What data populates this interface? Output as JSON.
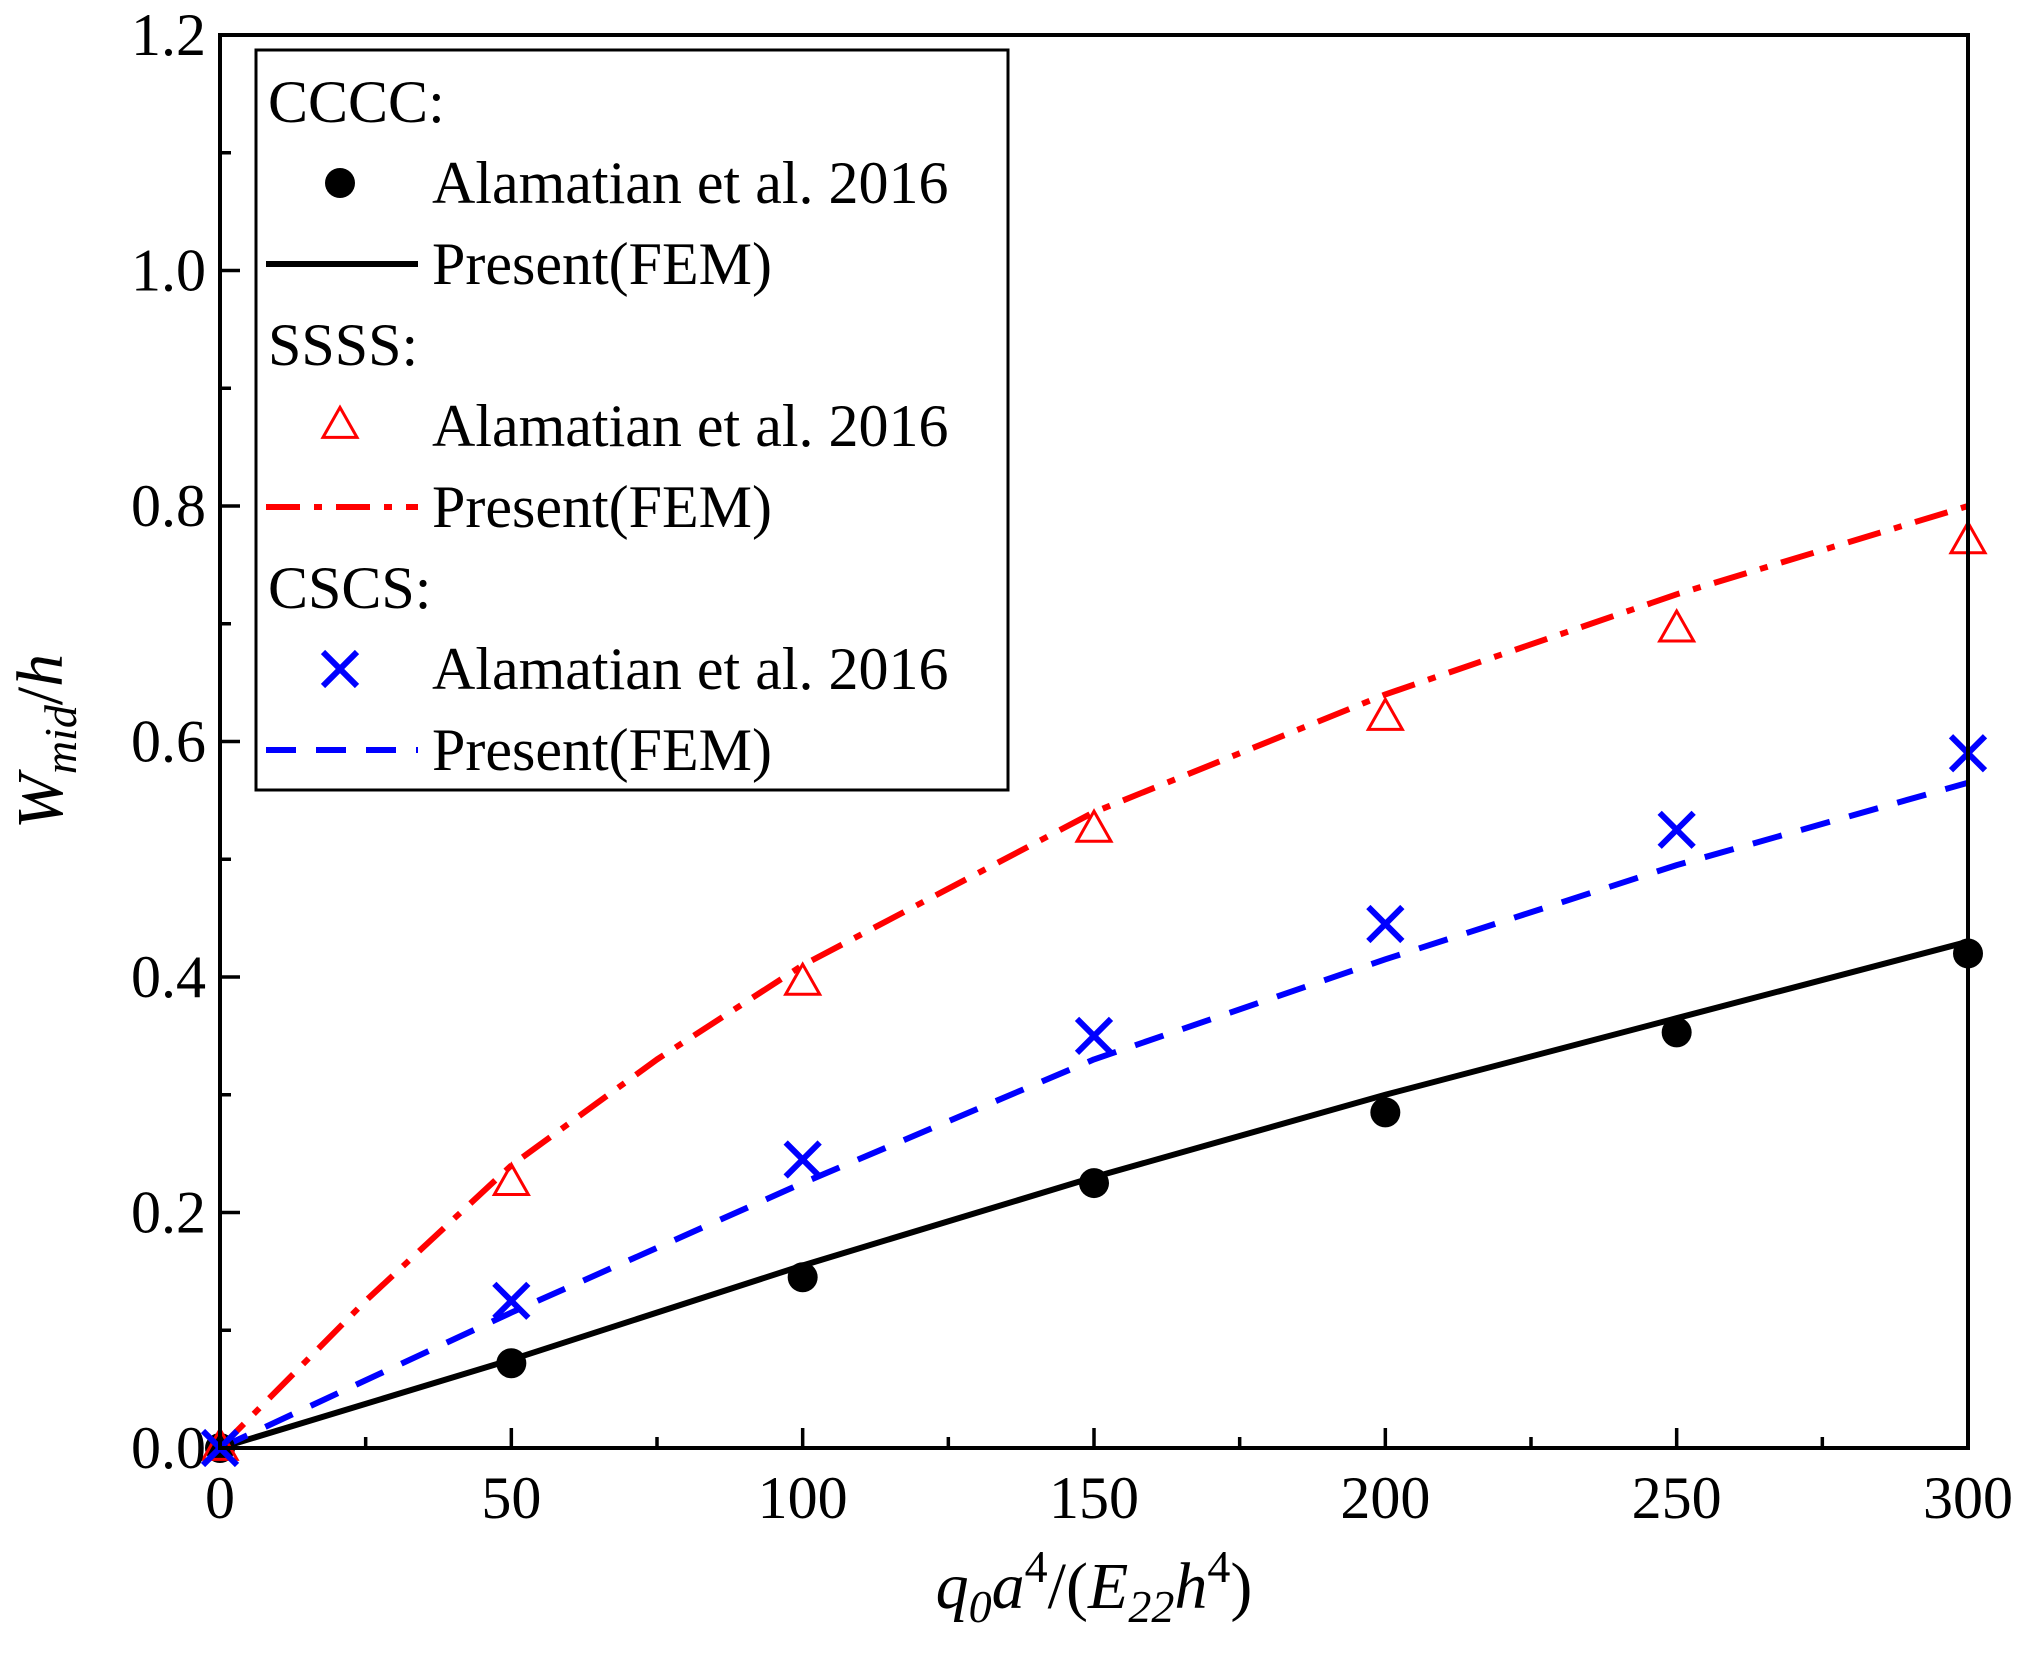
{
  "chart_data": {
    "type": "line",
    "title": "",
    "xlabel": "q0a4/(E22h4)",
    "ylabel": "Wmid/h",
    "xlim": [
      0,
      300
    ],
    "ylim": [
      0,
      1.2
    ],
    "x_ticks": [
      "0",
      "50",
      "100",
      "150",
      "200",
      "250",
      "300"
    ],
    "y_ticks": [
      "0.0",
      "0.2",
      "0.4",
      "0.6",
      "0.8",
      "1.0",
      "1.2"
    ],
    "grid": false,
    "legend_position": "top-left",
    "groups": [
      {
        "name": "CCCC:",
        "color": "#000000",
        "reference": {
          "name": "Alamatian et al. 2016",
          "marker": "filled-circle",
          "x": [
            0,
            50,
            100,
            150,
            200,
            250,
            300
          ],
          "y": [
            0.0,
            0.072,
            0.145,
            0.225,
            0.285,
            0.353,
            0.42
          ]
        },
        "present": {
          "name": "Present(FEM)",
          "style": "solid",
          "x": [
            0,
            50,
            100,
            150,
            200,
            250,
            300
          ],
          "y": [
            0.0,
            0.075,
            0.155,
            0.23,
            0.3,
            0.365,
            0.43
          ]
        }
      },
      {
        "name": "SSSS:",
        "color": "#ff0000",
        "reference": {
          "name": "Alamatian et al. 2016",
          "marker": "open-triangle",
          "x": [
            0,
            50,
            100,
            150,
            200,
            250,
            300
          ],
          "y": [
            0.0,
            0.225,
            0.395,
            0.525,
            0.62,
            0.695,
            0.77
          ]
        },
        "present": {
          "name": "Present(FEM)",
          "style": "dash-dot",
          "x": [
            0,
            25,
            50,
            75,
            100,
            150,
            200,
            250,
            300
          ],
          "y": [
            0.0,
            0.125,
            0.24,
            0.33,
            0.41,
            0.54,
            0.64,
            0.725,
            0.8
          ]
        }
      },
      {
        "name": "CSCS:",
        "color": "#0000ff",
        "reference": {
          "name": "Alamatian et al. 2016",
          "marker": "x-cross",
          "x": [
            0,
            50,
            100,
            150,
            200,
            250,
            300
          ],
          "y": [
            0.0,
            0.125,
            0.245,
            0.35,
            0.445,
            0.525,
            0.59
          ]
        },
        "present": {
          "name": "Present(FEM)",
          "style": "dashed",
          "x": [
            0,
            50,
            100,
            150,
            200,
            250,
            300
          ],
          "y": [
            0.0,
            0.115,
            0.225,
            0.33,
            0.415,
            0.495,
            0.565
          ]
        }
      }
    ]
  }
}
